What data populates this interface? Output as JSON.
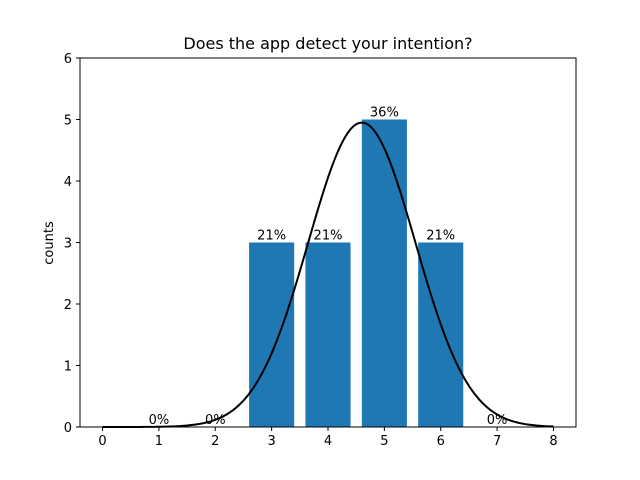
{
  "chart_data": {
    "type": "bar",
    "title": "Does the app detect your intention?",
    "xlabel": "",
    "ylabel": "counts",
    "x": [
      1,
      2,
      3,
      4,
      5,
      6,
      7
    ],
    "values": [
      0,
      0,
      3,
      3,
      5,
      3,
      0
    ],
    "data_labels": [
      "0%",
      "0%",
      "21%",
      "21%",
      "36%",
      "21%",
      "0%"
    ],
    "xlim": [
      -0.4,
      8.4
    ],
    "ylim": [
      0,
      6
    ],
    "xticks": [
      0,
      1,
      2,
      3,
      4,
      5,
      6,
      7,
      8
    ],
    "yticks": [
      0,
      1,
      2,
      3,
      4,
      5,
      6
    ],
    "grid": false,
    "bar_color": "#1f77b4",
    "overlay_curve": {
      "type": "line",
      "color": "#000000",
      "peak_x": 4.6,
      "peak_y": 4.95,
      "sigma": 0.95,
      "x_range": [
        0,
        8
      ]
    }
  }
}
